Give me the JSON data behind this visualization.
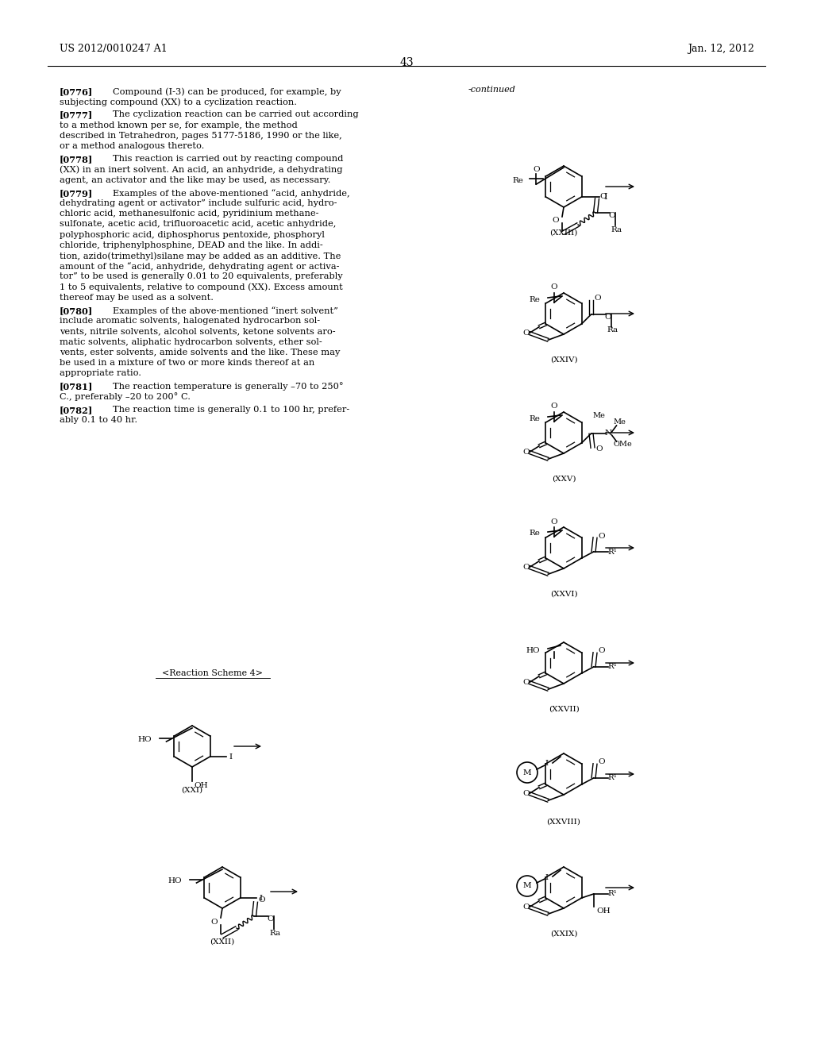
{
  "page_header_left": "US 2012/0010247 A1",
  "page_header_right": "Jan. 12, 2012",
  "page_number": "43",
  "background_color": "#ffffff",
  "text_color": "#000000"
}
